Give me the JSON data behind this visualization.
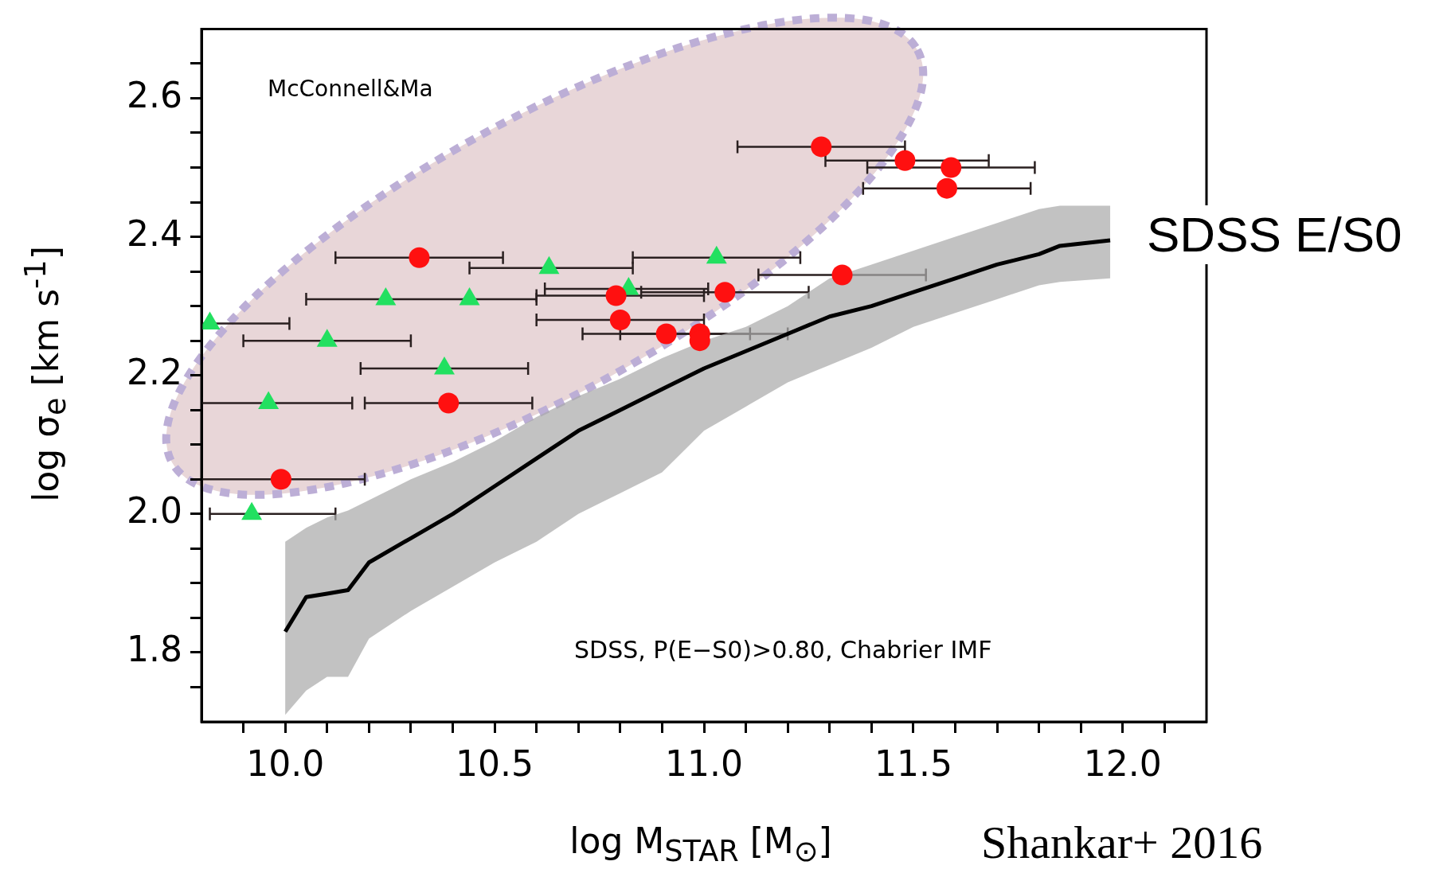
{
  "chart_data": {
    "type": "scatter",
    "xlabel": "log M$_{STAR}$ [M$_{⊙}$]",
    "ylabel": "log σ$_{e}$ [km s$^{-1}$]",
    "xlim": [
      9.8,
      12.2
    ],
    "ylim": [
      1.7,
      2.7
    ],
    "xticks": [
      {
        "value": 9.9,
        "label": null
      },
      {
        "value": 10.0,
        "label": "10.0"
      },
      {
        "value": 10.1,
        "label": null
      },
      {
        "value": 10.2,
        "label": null
      },
      {
        "value": 10.3,
        "label": null
      },
      {
        "value": 10.4,
        "label": null
      },
      {
        "value": 10.5,
        "label": "10.5"
      },
      {
        "value": 10.6,
        "label": null
      },
      {
        "value": 10.7,
        "label": null
      },
      {
        "value": 10.8,
        "label": null
      },
      {
        "value": 10.9,
        "label": null
      },
      {
        "value": 11.0,
        "label": "11.0"
      },
      {
        "value": 11.1,
        "label": null
      },
      {
        "value": 11.2,
        "label": null
      },
      {
        "value": 11.3,
        "label": null
      },
      {
        "value": 11.4,
        "label": null
      },
      {
        "value": 11.5,
        "label": "11.5"
      },
      {
        "value": 11.6,
        "label": null
      },
      {
        "value": 11.7,
        "label": null
      },
      {
        "value": 11.8,
        "label": null
      },
      {
        "value": 11.9,
        "label": null
      },
      {
        "value": 12.0,
        "label": "12.0"
      },
      {
        "value": 12.1,
        "label": null
      }
    ],
    "yticks": [
      {
        "value": 1.75,
        "label": null
      },
      {
        "value": 1.8,
        "label": "1.8"
      },
      {
        "value": 1.85,
        "label": null
      },
      {
        "value": 1.9,
        "label": null
      },
      {
        "value": 1.95,
        "label": null
      },
      {
        "value": 2.0,
        "label": "2.0"
      },
      {
        "value": 2.05,
        "label": null
      },
      {
        "value": 2.1,
        "label": null
      },
      {
        "value": 2.15,
        "label": null
      },
      {
        "value": 2.2,
        "label": "2.2"
      },
      {
        "value": 2.25,
        "label": null
      },
      {
        "value": 2.3,
        "label": null
      },
      {
        "value": 2.35,
        "label": null
      },
      {
        "value": 2.4,
        "label": "2.4"
      },
      {
        "value": 2.45,
        "label": null
      },
      {
        "value": 2.5,
        "label": null
      },
      {
        "value": 2.55,
        "label": null
      },
      {
        "value": 2.6,
        "label": "2.6"
      },
      {
        "value": 2.65,
        "label": null
      }
    ],
    "grid": false,
    "legend": false,
    "annotations": [
      "McConnell&Ma",
      "SDSS, P(E−S0)>0.80, Chabrier IMF",
      "SDSS E/S0",
      "Shankar+ 2016"
    ],
    "series": [
      {
        "type": "scatter",
        "color": "#ff1010",
        "marker": "circle",
        "x": [
          10.32,
          10.39,
          9.99,
          11.28,
          11.48,
          11.59,
          11.58,
          11.33,
          11.05,
          10.79,
          10.8,
          10.91,
          10.99,
          10.99
        ],
        "values": [
          2.37,
          2.16,
          2.05,
          2.53,
          2.51,
          2.5,
          2.47,
          2.345,
          2.32,
          2.315,
          2.28,
          2.26,
          2.26,
          2.25
        ],
        "xerrors": [
          [
            10.12,
            10.52
          ],
          [
            10.19,
            10.59
          ],
          [
            9.8,
            10.19
          ],
          [
            11.08,
            11.48
          ],
          [
            11.29,
            11.68
          ],
          [
            11.39,
            11.79
          ],
          [
            11.38,
            11.78
          ],
          [
            11.13,
            11.53
          ],
          [
            10.85,
            11.25
          ],
          [
            10.6,
            11.0
          ],
          [
            10.6,
            11.0
          ],
          [
            10.71,
            11.11
          ],
          [
            10.8,
            11.2
          ],
          null
        ]
      },
      {
        "type": "scatter",
        "color": "#22e060",
        "marker": "triangle",
        "x": [
          9.82,
          10.1,
          10.24,
          10.44,
          10.63,
          10.82,
          11.03,
          10.38,
          9.96,
          9.92
        ],
        "values": [
          2.275,
          2.25,
          2.31,
          2.31,
          2.355,
          2.325,
          2.37,
          2.21,
          2.16,
          2.0
        ],
        "xerrors": [
          [
            9.8,
            10.01
          ],
          [
            9.9,
            10.3
          ],
          [
            10.05,
            10.6
          ],
          null,
          [
            10.44,
            10.83
          ],
          [
            10.62,
            11.01
          ],
          [
            10.83,
            11.23
          ],
          [
            10.18,
            10.58
          ],
          [
            9.8,
            10.16
          ],
          [
            9.82,
            10.12
          ]
        ]
      },
      {
        "type": "line",
        "color": "#000000",
        "marker": "none",
        "line_style": "solid",
        "x": [
          10.0,
          10.05,
          10.1,
          10.15,
          10.2,
          10.3,
          10.4,
          10.5,
          10.6,
          10.7,
          10.8,
          10.9,
          11.0,
          11.1,
          11.2,
          11.3,
          11.4,
          11.5,
          11.6,
          11.7,
          11.8,
          11.85,
          11.97
        ],
        "values": [
          1.83,
          1.88,
          1.885,
          1.89,
          1.93,
          1.965,
          2.0,
          2.04,
          2.08,
          2.12,
          2.15,
          2.18,
          2.21,
          2.235,
          2.26,
          2.285,
          2.3,
          2.32,
          2.34,
          2.36,
          2.375,
          2.387,
          2.395
        ],
        "lower": [
          1.71,
          1.745,
          1.765,
          1.765,
          1.82,
          1.86,
          1.895,
          1.93,
          1.96,
          2.0,
          2.03,
          2.06,
          2.12,
          2.155,
          2.19,
          2.215,
          2.24,
          2.27,
          2.29,
          2.31,
          2.33,
          2.335,
          2.34
        ],
        "upper": [
          1.96,
          1.98,
          1.995,
          2.005,
          2.02,
          2.05,
          2.075,
          2.105,
          2.14,
          2.17,
          2.195,
          2.225,
          2.25,
          2.27,
          2.3,
          2.34,
          2.36,
          2.38,
          2.4,
          2.42,
          2.44,
          2.445,
          2.445
        ]
      }
    ]
  }
}
